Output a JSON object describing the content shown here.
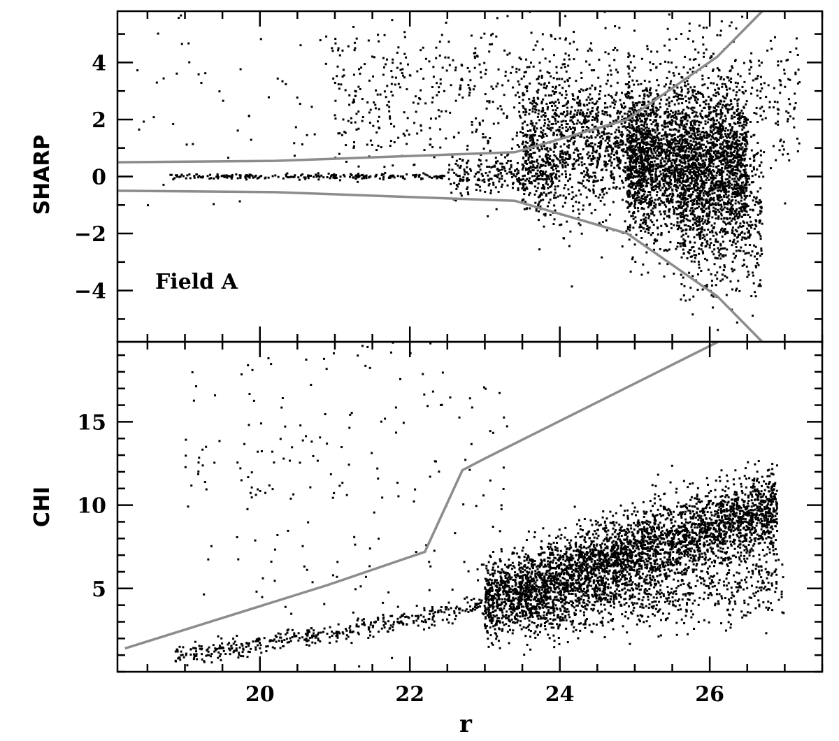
{
  "chart_data": [
    {
      "type": "scatter",
      "panel": "top",
      "ylabel": "SHARP",
      "xlabel": "",
      "annotation": "Field A",
      "xlim": [
        18.1,
        27.5
      ],
      "ylim": [
        -5.8,
        5.8
      ],
      "x_ticks": [
        20,
        22,
        24,
        26
      ],
      "y_ticks": [
        -4,
        -2,
        0,
        2,
        4
      ],
      "y_tick_labels": [
        "−4",
        "−2",
        "0",
        "2",
        "4"
      ],
      "point_color": "#000000",
      "line_color": "#8c8c8c",
      "cut_lines": [
        {
          "x": [
            18.1,
            20.2,
            23.4,
            24.9,
            26.1,
            26.7
          ],
          "y": [
            0.5,
            0.55,
            0.85,
            2.0,
            4.2,
            5.8
          ]
        },
        {
          "x": [
            18.1,
            20.2,
            23.4,
            24.9,
            26.1,
            26.7
          ],
          "y": [
            -0.5,
            -0.55,
            -0.85,
            -2.0,
            -4.2,
            -5.8
          ]
        }
      ],
      "point_groups": [
        {
          "x_range": [
            18.8,
            22.5
          ],
          "center": [
            0.0,
            0.0
          ],
          "spread": 0.05,
          "count": 220
        },
        {
          "x_range": [
            22.5,
            24.0
          ],
          "center": [
            0.0,
            0.1
          ],
          "spread": 0.35,
          "count": 260
        },
        {
          "x_range": [
            23.5,
            25.2
          ],
          "center": [
            0.9,
            1.0
          ],
          "spread": 1.2,
          "count": 1200
        },
        {
          "x_range": [
            24.9,
            26.5
          ],
          "center": [
            0.6,
            0.4
          ],
          "spread": 1.3,
          "count": 2600
        },
        {
          "x_range": [
            25.6,
            26.7
          ],
          "center": [
            -1.2,
            -1.2
          ],
          "spread": 1.5,
          "count": 700
        },
        {
          "x_range": [
            21.0,
            27.2
          ],
          "center": [
            3.2,
            2.5
          ],
          "spread": 1.4,
          "count": 900
        },
        {
          "x_range": [
            18.3,
            21.5
          ],
          "center": [
            2.6,
            3.0
          ],
          "spread": 1.6,
          "count": 70
        }
      ]
    },
    {
      "type": "scatter",
      "panel": "bottom",
      "ylabel": "CHI",
      "xlabel": "r",
      "xlim": [
        18.1,
        27.5
      ],
      "ylim": [
        0.0,
        19.8
      ],
      "x_ticks": [
        20,
        22,
        24,
        26
      ],
      "x_tick_labels": [
        "20",
        "22",
        "24",
        "26"
      ],
      "y_ticks": [
        5,
        10,
        15
      ],
      "y_tick_labels": [
        "5",
        "10",
        "15"
      ],
      "point_color": "#000000",
      "line_color": "#8c8c8c",
      "cut_lines": [
        {
          "x": [
            18.2,
            20.9,
            22.2,
            22.7,
            23.0,
            26.2
          ],
          "y": [
            1.4,
            5.2,
            7.2,
            12.1,
            12.8,
            20.0
          ]
        }
      ],
      "point_groups": [
        {
          "x_range": [
            18.8,
            23.0
          ],
          "curve": "stellar",
          "spread": 0.3,
          "count": 420
        },
        {
          "x_range": [
            23.0,
            26.9
          ],
          "curve": "main",
          "spread": 1.2,
          "count": 3800
        },
        {
          "x_range": [
            23.5,
            27.0
          ],
          "curve": "lower",
          "spread": 1.0,
          "count": 700
        },
        {
          "x_range": [
            19.0,
            23.3
          ],
          "curve": "outliers",
          "spread": 4.0,
          "count": 240
        }
      ]
    }
  ]
}
